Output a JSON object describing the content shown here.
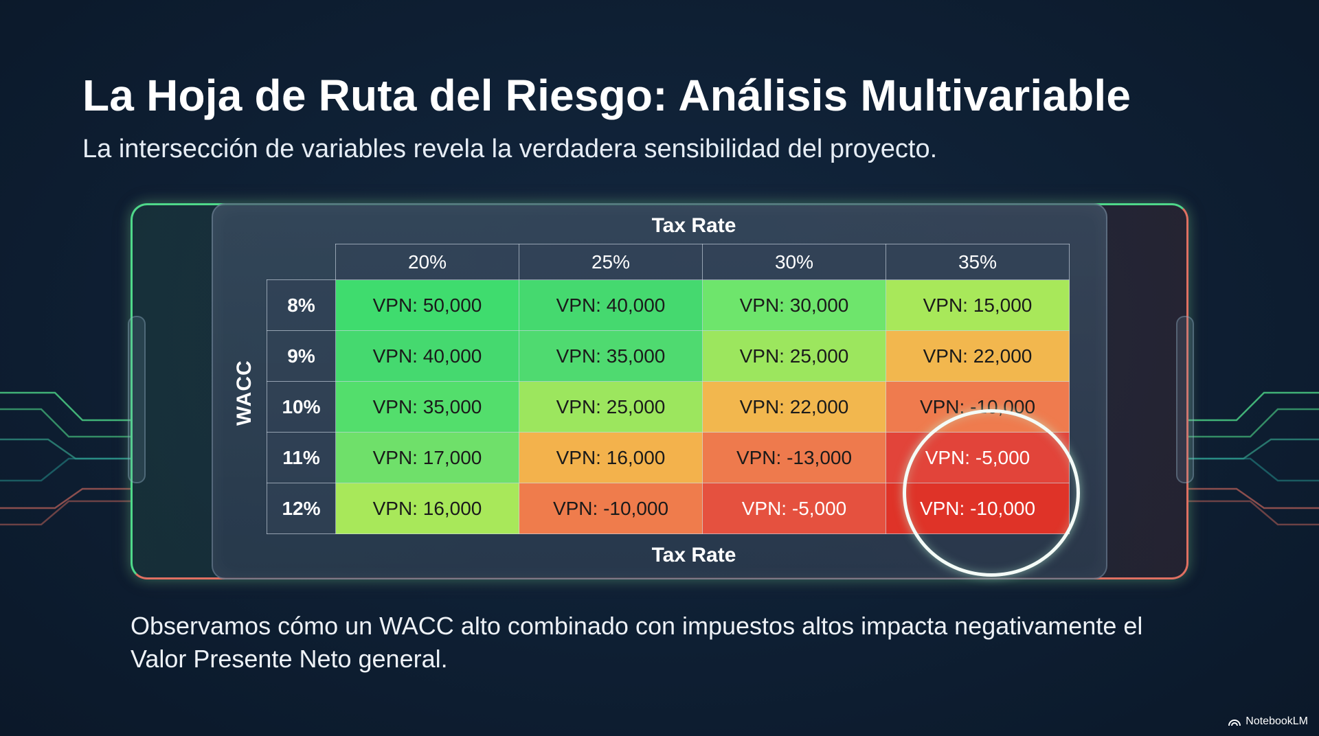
{
  "slide": {
    "title": "La Hoja de Ruta del Riesgo: Análisis Multivariable",
    "subtitle": "La intersección de variables revela la verdadera sensibilidad del proyecto.",
    "footer_note": "Observamos cómo un WACC alto combinado con impuestos altos impacta negativamente el Valor Presente Neto general."
  },
  "matrix": {
    "column_axis_label": "Tax Rate",
    "column_axis_label_bottom": "Tax Rate",
    "row_axis_label": "WACC",
    "columns": [
      "20%",
      "25%",
      "30%",
      "35%"
    ],
    "rows": [
      {
        "label": "8%",
        "cells": [
          "VPN: 50,000",
          "VPN: 40,000",
          "VPN: 30,000",
          "VPN: 15,000"
        ]
      },
      {
        "label": "9%",
        "cells": [
          "VPN: 40,000",
          "VPN: 35,000",
          "VPN: 25,000",
          "VPN: 22,000"
        ]
      },
      {
        "label": "10%",
        "cells": [
          "VPN: 35,000",
          "VPN: 25,000",
          "VPN: 22,000",
          "VPN: -10,000"
        ]
      },
      {
        "label": "11%",
        "cells": [
          "VPN: 17,000",
          "VPN: 16,000",
          "VPN: -13,000",
          "VPN: -5,000"
        ]
      },
      {
        "label": "12%",
        "cells": [
          "VPN: 16,000",
          "VPN: -10,000",
          "VPN: -5,000",
          "VPN: -10,000"
        ]
      }
    ],
    "cell_colors": [
      [
        "#3fdc6e",
        "#45d96f",
        "#6ee56c",
        "#a8e85a"
      ],
      [
        "#45d96f",
        "#4fda70",
        "#9ce65e",
        "#f2b74e"
      ],
      [
        "#53de6c",
        "#9ce65e",
        "#f2b74e",
        "#ef7b4e"
      ],
      [
        "#6fe06a",
        "#f3b24c",
        "#ee7a4d",
        "#e2443a"
      ],
      [
        "#a8e85a",
        "#ef7c4c",
        "#e5513f",
        "#df3328"
      ]
    ],
    "cell_text_colors": [
      [
        "#1a1a1a",
        "#1a1a1a",
        "#1a1a1a",
        "#1a1a1a"
      ],
      [
        "#1a1a1a",
        "#1a1a1a",
        "#1a1a1a",
        "#1a1a1a"
      ],
      [
        "#1a1a1a",
        "#1a1a1a",
        "#1a1a1a",
        "#1a1a1a"
      ],
      [
        "#1a1a1a",
        "#1a1a1a",
        "#1a1a1a",
        "#ffffff"
      ],
      [
        "#1a1a1a",
        "#1a1a1a",
        "#ffffff",
        "#ffffff"
      ]
    ],
    "highlighted_cells": [
      [
        3,
        3
      ],
      [
        4,
        3
      ]
    ]
  },
  "brand": {
    "name": "NotebookLM",
    "icon": "notebooklm-logo-icon"
  },
  "colors": {
    "background": "#0e1f33",
    "accent_green": "#4fd88a",
    "accent_red": "#e07062"
  }
}
